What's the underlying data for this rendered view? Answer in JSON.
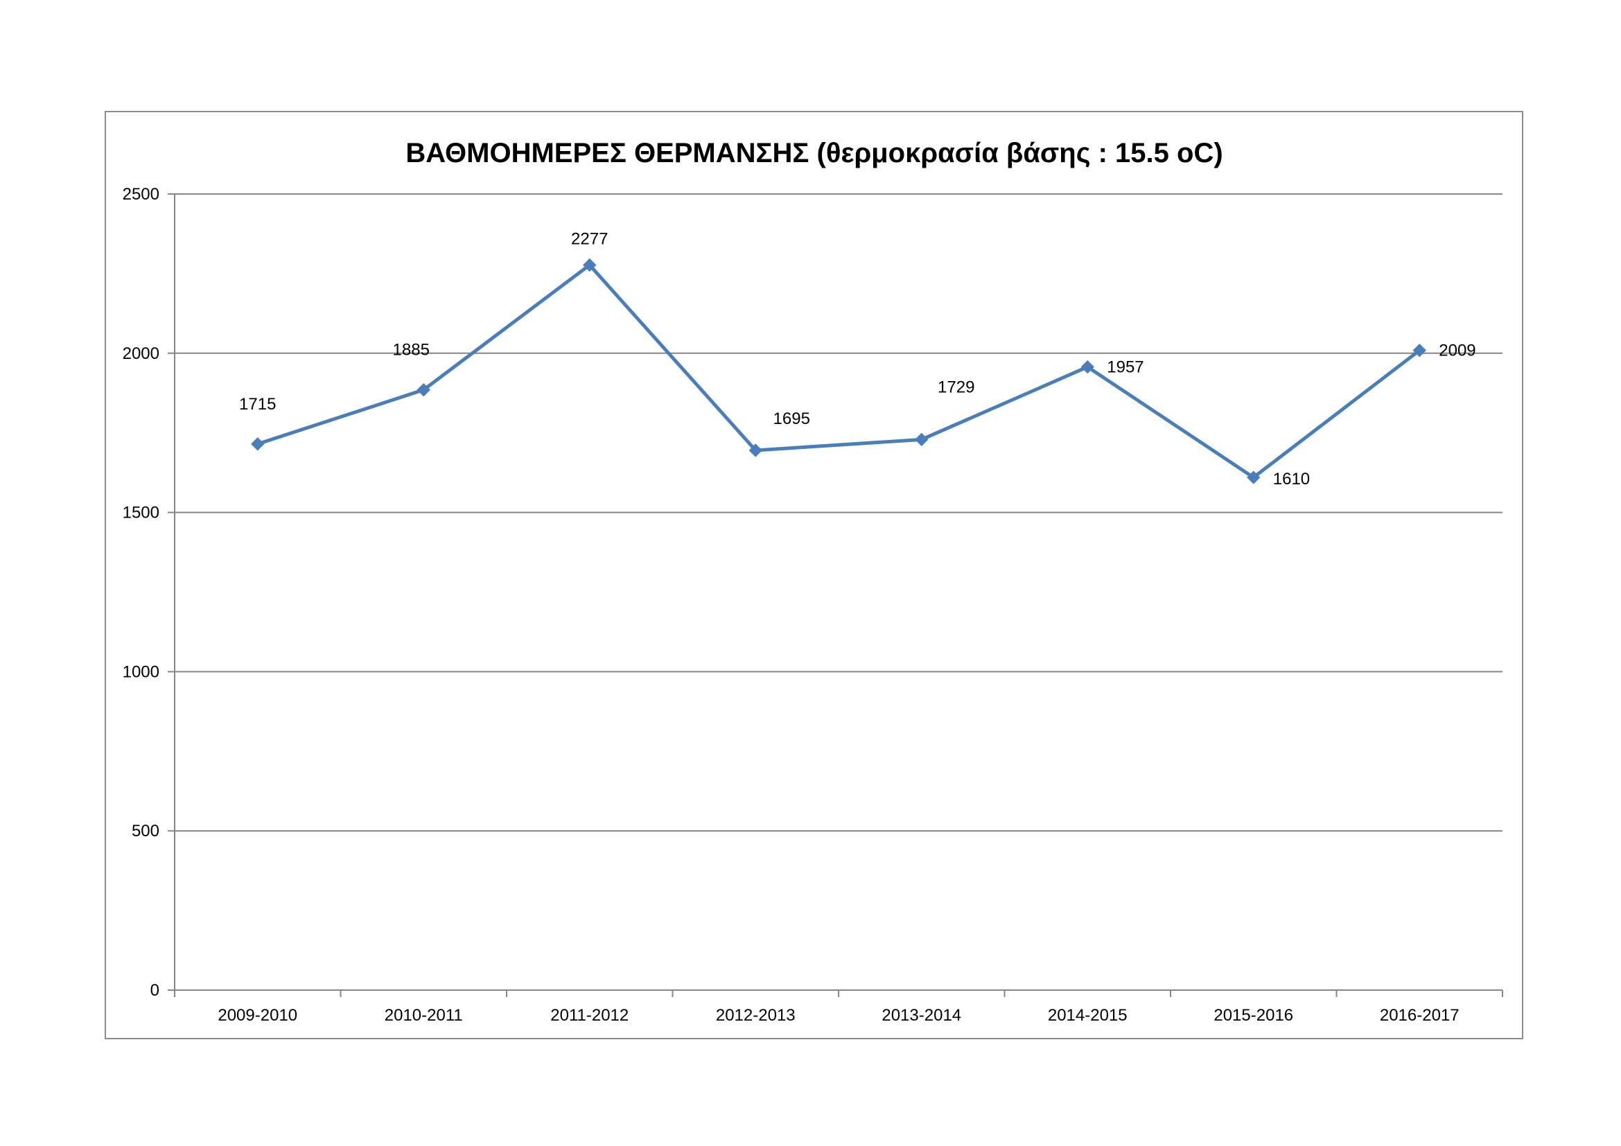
{
  "chart_data": {
    "type": "line",
    "title": "ΒΑΘΜΟΗΜΕΡΕΣ ΘΕΡΜΑΝΣΗΣ (θερμοκρασία βάσης : 15.5 oC)",
    "xlabel": "",
    "ylabel": "",
    "categories": [
      "2009-2010",
      "2010-2011",
      "2011-2012",
      "2012-2013",
      "2013-2014",
      "2014-2015",
      "2015-2016",
      "2016-2017"
    ],
    "series": [
      {
        "values": [
          1715,
          1885,
          2277,
          1695,
          1729,
          1957,
          1610,
          2009
        ],
        "color": "#4a7ebb",
        "marker": "diamond"
      }
    ],
    "data_labels": [
      "1715",
      "1885",
      "2277",
      "1695",
      "1729",
      "1957",
      "1610",
      "2009"
    ],
    "ylim": [
      0,
      2500
    ],
    "yticks": [
      0,
      500,
      1000,
      1500,
      2000,
      2500
    ],
    "ytick_labels": [
      "0",
      "500",
      "1000",
      "1500",
      "2000",
      "2500"
    ],
    "grid": true,
    "legend": "none"
  }
}
